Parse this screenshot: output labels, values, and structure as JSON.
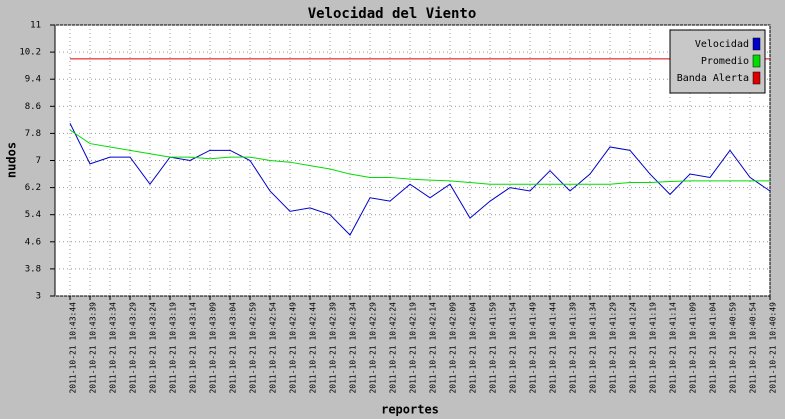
{
  "chart_data": {
    "type": "line",
    "title": "Velocidad del Viento",
    "y_label": "nudos",
    "x_label": "reportes",
    "categories": [
      "2011-10-21 10:43:44",
      "2011-10-21 10:43:39",
      "2011-10-21 10:43:34",
      "2011-10-21 10:43:29",
      "2011-10-21 10:43:24",
      "2011-10-21 10:43:19",
      "2011-10-21 10:43:14",
      "2011-10-21 10:43:09",
      "2011-10-21 10:43:04",
      "2011-10-21 10:42:59",
      "2011-10-21 10:42:54",
      "2011-10-21 10:42:49",
      "2011-10-21 10:42:44",
      "2011-10-21 10:42:39",
      "2011-10-21 10:42:34",
      "2011-10-21 10:42:29",
      "2011-10-21 10:42:24",
      "2011-10-21 10:42:19",
      "2011-10-21 10:42:14",
      "2011-10-21 10:42:09",
      "2011-10-21 10:42:04",
      "2011-10-21 10:41:59",
      "2011-10-21 10:41:54",
      "2011-10-21 10:41:49",
      "2011-10-21 10:41:44",
      "2011-10-21 10:41:39",
      "2011-10-21 10:41:34",
      "2011-10-21 10:41:29",
      "2011-10-21 10:41:24",
      "2011-10-21 10:41:19",
      "2011-10-21 10:41:14",
      "2011-10-21 10:41:09",
      "2011-10-21 10:41:04",
      "2011-10-21 10:40:59",
      "2011-10-21 10:40:54",
      "2011-10-21 10:40:49"
    ],
    "series": [
      {
        "name": "Velocidad",
        "color": "#0000cc",
        "values": [
          8.1,
          6.9,
          7.1,
          7.1,
          6.3,
          7.1,
          7.0,
          7.3,
          7.3,
          7.0,
          6.1,
          5.5,
          5.6,
          5.4,
          4.8,
          5.9,
          5.8,
          6.3,
          5.9,
          6.3,
          5.3,
          5.8,
          6.2,
          6.1,
          6.7,
          6.1,
          6.6,
          7.4,
          7.3,
          6.6,
          6.0,
          6.6,
          6.5,
          7.3,
          6.5,
          6.1
        ]
      },
      {
        "name": "Promedio",
        "color": "#00dd00",
        "values": [
          7.9,
          7.5,
          7.4,
          7.3,
          7.2,
          7.1,
          7.1,
          7.05,
          7.1,
          7.1,
          7.0,
          6.95,
          6.85,
          6.75,
          6.6,
          6.5,
          6.5,
          6.45,
          6.42,
          6.4,
          6.35,
          6.3,
          6.3,
          6.3,
          6.3,
          6.3,
          6.3,
          6.3,
          6.35,
          6.35,
          6.38,
          6.4,
          6.4,
          6.4,
          6.4,
          6.4
        ]
      },
      {
        "name": "Banda Alerta",
        "color": "#dd0000",
        "values": [
          10,
          10,
          10,
          10,
          10,
          10,
          10,
          10,
          10,
          10,
          10,
          10,
          10,
          10,
          10,
          10,
          10,
          10,
          10,
          10,
          10,
          10,
          10,
          10,
          10,
          10,
          10,
          10,
          10,
          10,
          10,
          10,
          10,
          10,
          10,
          10
        ]
      }
    ],
    "ylim": [
      3,
      11
    ],
    "yticks": [
      3,
      3.8,
      4.6,
      5.4,
      6.2,
      7,
      7.8,
      8.6,
      9.4,
      10.2,
      11
    ],
    "grid": true,
    "legend": "top-right"
  }
}
